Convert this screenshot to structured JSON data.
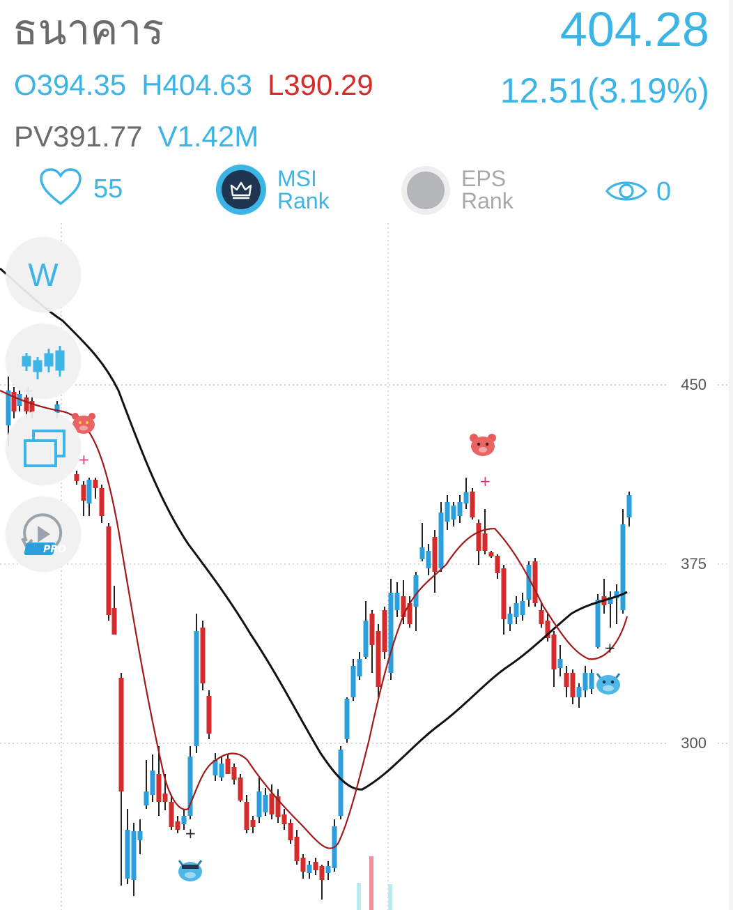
{
  "header": {
    "stock_name": "ธนาคาร",
    "last_price": "404.28",
    "open": "O394.35",
    "high": "H404.63",
    "low": "L390.29",
    "change": "12.51",
    "change_pct": "(3.19%)",
    "prev_close": "PV391.77",
    "volume": "V1.42M"
  },
  "rank_row": {
    "like_count": "55",
    "msi_label_1": "MSI",
    "msi_label_2": "Rank",
    "eps_label_1": "EPS",
    "eps_label_2": "Rank",
    "view_count": "0"
  },
  "tools": {
    "period_label": "W",
    "replay_badge": "PRO"
  },
  "chart": {
    "y_axis_labels": [
      "450",
      "375",
      "300"
    ]
  },
  "colors": {
    "accent": "#3cb4e6",
    "down": "#d62b2b",
    "up": "#2a9fdc",
    "ma_short": "#a11a1a",
    "ma_long": "#111111"
  },
  "icons": {
    "like": "heart-icon",
    "msi": "crown-icon",
    "eps": "circle-icon",
    "views": "eye-icon",
    "chart_type": "candlestick-icon",
    "compare": "layers-icon",
    "replay": "replay-icon",
    "bear_signal": "bear-icon",
    "bull_signal": "bull-icon"
  }
}
